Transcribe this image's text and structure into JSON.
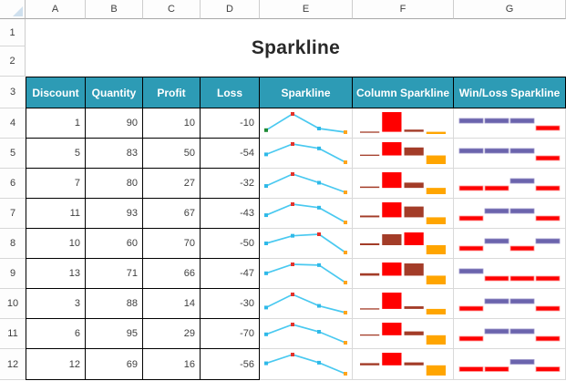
{
  "title": "Sparkline",
  "column_headers": [
    "A",
    "B",
    "C",
    "D",
    "E",
    "F",
    "G"
  ],
  "row_numbers": [
    "1",
    "2",
    "3",
    "4",
    "5",
    "6",
    "7",
    "8",
    "9",
    "10",
    "11",
    "12"
  ],
  "table": {
    "headers": [
      "Discount",
      "Quantity",
      "Profit",
      "Loss",
      "Sparkline",
      "Column Sparkline",
      "Win/Loss Sparkline"
    ],
    "rows": [
      {
        "row": "4",
        "discount": 1,
        "quantity": 90,
        "profit": 10,
        "loss": -10,
        "winloss": [
          1,
          1,
          1,
          -1
        ],
        "first_point_green": true
      },
      {
        "row": "5",
        "discount": 5,
        "quantity": 83,
        "profit": 50,
        "loss": -54,
        "winloss": [
          1,
          1,
          1,
          -1
        ],
        "first_point_green": false
      },
      {
        "row": "6",
        "discount": 7,
        "quantity": 80,
        "profit": 27,
        "loss": -32,
        "winloss": [
          -1,
          -1,
          1,
          -1
        ],
        "first_point_green": false
      },
      {
        "row": "7",
        "discount": 11,
        "quantity": 93,
        "profit": 67,
        "loss": -43,
        "winloss": [
          -1,
          1,
          1,
          -1
        ],
        "first_point_green": false
      },
      {
        "row": "8",
        "discount": 10,
        "quantity": 60,
        "profit": 70,
        "loss": -50,
        "winloss": [
          -1,
          1,
          -1,
          1
        ],
        "first_point_green": false
      },
      {
        "row": "9",
        "discount": 13,
        "quantity": 71,
        "profit": 66,
        "loss": -47,
        "winloss": [
          1,
          -1,
          -1,
          -1
        ],
        "first_point_green": false
      },
      {
        "row": "10",
        "discount": 3,
        "quantity": 88,
        "profit": 14,
        "loss": -30,
        "winloss": [
          -1,
          1,
          1,
          -1
        ],
        "first_point_green": false
      },
      {
        "row": "11",
        "discount": 6,
        "quantity": 95,
        "profit": 29,
        "loss": -70,
        "winloss": [
          -1,
          1,
          1,
          -1
        ],
        "first_point_green": false
      },
      {
        "row": "12",
        "discount": 12,
        "quantity": 69,
        "profit": 16,
        "loss": -56,
        "winloss": [
          -1,
          -1,
          1,
          -1
        ],
        "first_point_green": false
      }
    ]
  },
  "colors": {
    "header_teal": "#2D9BB5",
    "title_text": "#292929",
    "line_spark_line": "#4AC9F0",
    "line_spark_marker": "#2FB9E8",
    "line_spark_high": "#E4322B",
    "line_spark_first": "#1E8A34",
    "line_spark_last": "#FFA41C",
    "col_spark_series": "#A33C28",
    "col_spark_high": "#FF0000",
    "col_spark_negative": "#FFA500",
    "winloss_positive": "#6B64AD",
    "winloss_negative": "#FF0000"
  }
}
